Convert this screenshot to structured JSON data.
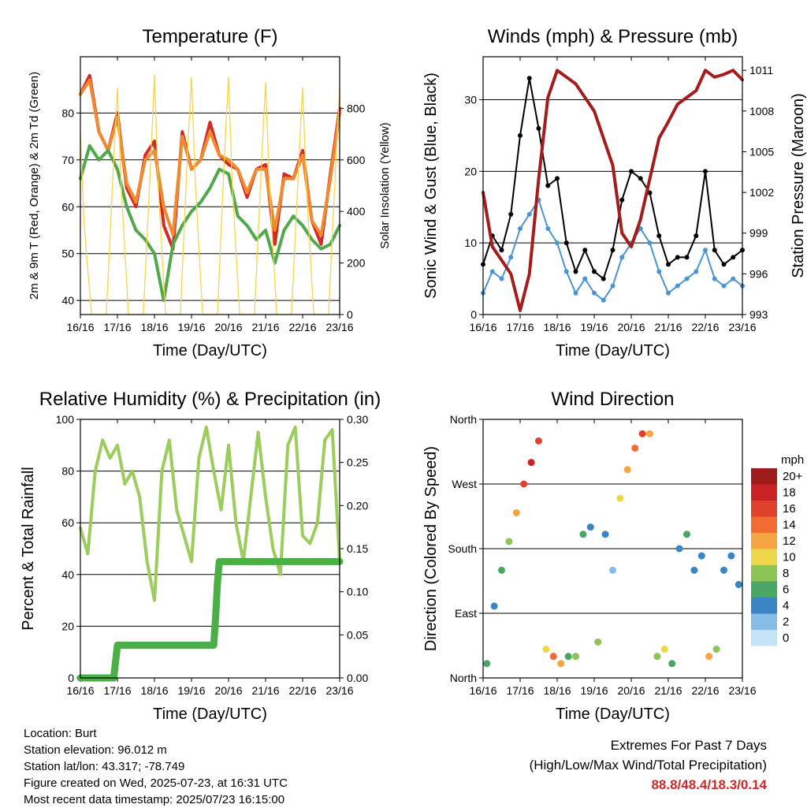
{
  "chart_data": [
    {
      "id": "temperature",
      "type": "line",
      "title": "Temperature (F)",
      "xlabel": "Time (Day/UTC)",
      "ylabel": "2m & 9m T (Red, Orange) & 2m Td (Green)",
      "ylabel_right": "Solar Insolation (Yellow)",
      "x_ticks": [
        "16/16",
        "17/16",
        "18/16",
        "19/16",
        "20/16",
        "21/16",
        "22/16",
        "23/16"
      ],
      "y_ticks": [
        "40",
        "50",
        "60",
        "70",
        "80"
      ],
      "y2_ticks": [
        "0",
        "200",
        "400",
        "600",
        "800"
      ],
      "ylim": [
        37,
        92
      ],
      "y2lim": [
        0,
        1000
      ],
      "series": [
        {
          "name": "2m T",
          "color": "#d42a26",
          "x": [
            0,
            0.25,
            0.5,
            0.75,
            1.0,
            1.25,
            1.5,
            1.75,
            2.0,
            2.25,
            2.5,
            2.75,
            3.0,
            3.25,
            3.5,
            3.75,
            4.0,
            4.25,
            4.5,
            4.75,
            5.0,
            5.25,
            5.5,
            5.75,
            6.0,
            6.25,
            6.5,
            6.75,
            7.0
          ],
          "values": [
            84,
            88,
            76,
            72,
            80,
            64,
            60,
            71,
            74,
            56,
            51,
            76,
            68,
            70,
            78,
            71,
            69,
            68,
            62,
            68,
            69,
            52,
            67,
            66,
            72,
            57,
            52,
            67,
            81
          ]
        },
        {
          "name": "9m T",
          "color": "#f08a2e",
          "x": [
            0,
            0.25,
            0.5,
            0.75,
            1.0,
            1.25,
            1.5,
            1.75,
            2.0,
            2.25,
            2.5,
            2.75,
            3.0,
            3.25,
            3.5,
            3.75,
            4.0,
            4.25,
            4.5,
            4.75,
            5.0,
            5.25,
            5.5,
            5.75,
            6.0,
            6.25,
            6.5,
            6.75,
            7.0
          ],
          "values": [
            84,
            87,
            76,
            72,
            79,
            65,
            61,
            70,
            72,
            60,
            54,
            75,
            68,
            70,
            76,
            71,
            70,
            68,
            63,
            68,
            68,
            55,
            66,
            66,
            71,
            57,
            54,
            66,
            80
          ]
        },
        {
          "name": "2m Td",
          "color": "#4fa84a",
          "x": [
            0,
            0.25,
            0.5,
            0.75,
            1.0,
            1.25,
            1.5,
            1.75,
            2.0,
            2.25,
            2.5,
            2.75,
            3.0,
            3.25,
            3.5,
            3.75,
            4.0,
            4.25,
            4.5,
            4.75,
            5.0,
            5.25,
            5.5,
            5.75,
            6.0,
            6.25,
            6.5,
            6.75,
            7.0
          ],
          "values": [
            66,
            73,
            70,
            72,
            68,
            60,
            55,
            53,
            50,
            40,
            52,
            56,
            59,
            61,
            64,
            68,
            67,
            58,
            56,
            53,
            55,
            48,
            55,
            58,
            56,
            53,
            51,
            52,
            56
          ]
        },
        {
          "name": "Solar Insolation",
          "color": "#f5d54a",
          "axis": "right",
          "x": [
            0,
            0.1,
            0.3,
            0.5,
            0.7,
            0.9,
            1.0,
            1.1,
            1.3,
            1.5,
            1.7,
            1.9,
            2.0,
            2.1,
            2.3,
            2.5,
            2.7,
            2.9,
            3.0,
            3.1,
            3.3,
            3.5,
            3.7,
            3.9,
            4.0,
            4.1,
            4.3,
            4.5,
            4.7,
            4.9,
            5.0,
            5.1,
            5.3,
            5.5,
            5.7,
            5.9,
            6.0,
            6.1,
            6.3,
            6.5,
            6.7,
            6.9,
            7.0
          ],
          "values": [
            700,
            350,
            0,
            0,
            0,
            600,
            880,
            500,
            0,
            0,
            0,
            600,
            930,
            500,
            0,
            0,
            0,
            650,
            920,
            520,
            0,
            0,
            0,
            650,
            920,
            500,
            0,
            0,
            0,
            620,
            900,
            520,
            0,
            0,
            0,
            600,
            880,
            500,
            0,
            0,
            0,
            600,
            880
          ]
        }
      ]
    },
    {
      "id": "winds",
      "type": "scatter",
      "title": "Winds (mph) & Pressure (mb)",
      "xlabel": "Time (Day/UTC)",
      "ylabel": "Sonic Wind & Gust (Blue, Black)",
      "ylabel_right": "Station Pressure (Maroon)",
      "x_ticks": [
        "16/16",
        "17/16",
        "18/16",
        "19/16",
        "20/16",
        "21/16",
        "22/16",
        "23/16"
      ],
      "y_ticks": [
        "0",
        "10",
        "20",
        "30"
      ],
      "y2_ticks": [
        "993",
        "996",
        "999",
        "1002",
        "1005",
        "1008",
        "1011"
      ],
      "ylim": [
        0,
        36
      ],
      "y2lim": [
        993,
        1012
      ],
      "series": [
        {
          "name": "Sonic Wind",
          "color": "#4b93d1",
          "x": [
            0,
            0.25,
            0.5,
            0.75,
            1.0,
            1.25,
            1.5,
            1.75,
            2.0,
            2.25,
            2.5,
            2.75,
            3.0,
            3.25,
            3.5,
            3.75,
            4.0,
            4.25,
            4.5,
            4.75,
            5.0,
            5.25,
            5.5,
            5.75,
            6.0,
            6.25,
            6.5,
            6.75,
            7.0
          ],
          "values": [
            3,
            6,
            5,
            8,
            12,
            14,
            16,
            12,
            10,
            6,
            3,
            5,
            3,
            2,
            4,
            8,
            10,
            12,
            10,
            6,
            3,
            4,
            5,
            6,
            9,
            5,
            4,
            5,
            4
          ]
        },
        {
          "name": "Gust",
          "color": "#000000",
          "x": [
            0,
            0.25,
            0.5,
            0.75,
            1.0,
            1.25,
            1.5,
            1.75,
            2.0,
            2.25,
            2.5,
            2.75,
            3.0,
            3.25,
            3.5,
            3.75,
            4.0,
            4.25,
            4.5,
            4.75,
            5.0,
            5.25,
            5.5,
            5.75,
            6.0,
            6.25,
            6.5,
            6.75,
            7.0
          ],
          "values": [
            7,
            11,
            9,
            14,
            25,
            33,
            26,
            18,
            19,
            10,
            6,
            9,
            6,
            5,
            9,
            16,
            20,
            19,
            17,
            11,
            7,
            8,
            8,
            11,
            20,
            9,
            7,
            8,
            9
          ]
        },
        {
          "name": "Station Pressure",
          "color": "#a51c1c",
          "axis": "right",
          "x": [
            0,
            0.25,
            0.5,
            0.75,
            1.0,
            1.25,
            1.5,
            1.75,
            2.0,
            2.25,
            2.5,
            2.75,
            3.0,
            3.25,
            3.5,
            3.75,
            4.0,
            4.25,
            4.5,
            4.75,
            5.0,
            5.25,
            5.5,
            5.75,
            6.0,
            6.25,
            6.5,
            6.75,
            7.0
          ],
          "values": [
            1002,
            998,
            997,
            996,
            993.3,
            996,
            1003,
            1009,
            1011,
            1010.5,
            1010,
            1009,
            1008,
            1006,
            1004,
            999,
            998,
            1000,
            1003,
            1006,
            1007.2,
            1008.5,
            1009,
            1009.5,
            1011,
            1010.5,
            1010.7,
            1011,
            1010.3
          ]
        }
      ]
    },
    {
      "id": "humidity",
      "type": "line",
      "title": "Relative Humidity (%) & Precipitation (in)",
      "xlabel": "Time (Day/UTC)",
      "ylabel": "Percent & Total Rainfall",
      "x_ticks": [
        "16/16",
        "17/16",
        "18/16",
        "19/16",
        "20/16",
        "21/16",
        "22/16",
        "23/16"
      ],
      "y_ticks": [
        "0",
        "20",
        "40",
        "60",
        "80",
        "100"
      ],
      "y2_ticks": [
        "0.00",
        "0.05",
        "0.10",
        "0.15",
        "0.20",
        "0.25",
        "0.30"
      ],
      "ylim": [
        0,
        100
      ],
      "y2lim": [
        0,
        0.3
      ],
      "series": [
        {
          "name": "Relative Humidity",
          "color": "#9ccc5c",
          "x": [
            0,
            0.2,
            0.4,
            0.6,
            0.8,
            1.0,
            1.2,
            1.4,
            1.6,
            1.8,
            2.0,
            2.2,
            2.4,
            2.6,
            2.8,
            3.0,
            3.2,
            3.4,
            3.6,
            3.8,
            4.0,
            4.2,
            4.4,
            4.6,
            4.8,
            5.0,
            5.2,
            5.4,
            5.6,
            5.8,
            6.0,
            6.2,
            6.4,
            6.6,
            6.8,
            7.0
          ],
          "values": [
            58,
            48,
            80,
            92,
            85,
            90,
            75,
            80,
            70,
            45,
            30,
            80,
            92,
            65,
            55,
            45,
            85,
            97,
            80,
            65,
            90,
            60,
            45,
            70,
            95,
            70,
            50,
            40,
            90,
            97,
            55,
            52,
            60,
            92,
            96,
            45
          ]
        },
        {
          "name": "Total Rainfall",
          "color": "#4aaf45",
          "axis": "right",
          "x": [
            0,
            0.5,
            0.9,
            1.0,
            1.3,
            2.0,
            3.0,
            3.6,
            3.65,
            3.7,
            3.75,
            4.0,
            5.0,
            6.0,
            7.0
          ],
          "values": [
            0.0,
            0.0,
            0.0,
            0.038,
            0.038,
            0.038,
            0.038,
            0.038,
            0.07,
            0.11,
            0.135,
            0.135,
            0.135,
            0.135,
            0.135
          ]
        }
      ]
    },
    {
      "id": "wind_direction",
      "type": "scatter",
      "title": "Wind Direction",
      "xlabel": "Time (Day/UTC)",
      "ylabel": "Direction (Colored By Speed)",
      "x_ticks": [
        "16/16",
        "17/16",
        "18/16",
        "19/16",
        "20/16",
        "21/16",
        "22/16",
        "23/16"
      ],
      "y_ticks": [
        "North",
        "East",
        "South",
        "West",
        "North"
      ],
      "ylim": [
        0,
        360
      ],
      "x": [
        0.1,
        0.3,
        0.5,
        0.7,
        0.9,
        1.1,
        1.3,
        1.5,
        1.7,
        1.9,
        2.1,
        2.3,
        2.5,
        2.7,
        2.9,
        3.1,
        3.3,
        3.5,
        3.7,
        3.9,
        4.1,
        4.3,
        4.5,
        4.7,
        4.9,
        5.1,
        5.3,
        5.5,
        5.7,
        5.9,
        6.1,
        6.3,
        6.5,
        6.7,
        6.9
      ],
      "direction": [
        20,
        100,
        150,
        190,
        230,
        270,
        300,
        330,
        40,
        30,
        20,
        30,
        30,
        200,
        210,
        50,
        200,
        150,
        250,
        290,
        320,
        340,
        340,
        30,
        40,
        20,
        180,
        200,
        150,
        170,
        30,
        40,
        150,
        170,
        130
      ],
      "speed": [
        5,
        4,
        6,
        8,
        12,
        16,
        18,
        16,
        10,
        14,
        12,
        6,
        7,
        5,
        3,
        7,
        3,
        2,
        9,
        12,
        14,
        15,
        12,
        8,
        10,
        6,
        3,
        5,
        4,
        4,
        12,
        8,
        3,
        4,
        3
      ],
      "legend": {
        "title": "mph",
        "labels": [
          "20+",
          "18",
          "16",
          "14",
          "12",
          "10",
          "8",
          "6",
          "4",
          "2",
          "0"
        ],
        "colors": [
          "#9e1b1b",
          "#c92222",
          "#e0412e",
          "#f16b32",
          "#f6a542",
          "#ecd84a",
          "#8dc456",
          "#4aa664",
          "#3a86c4",
          "#86bce6",
          "#c4e3f6"
        ]
      }
    }
  ],
  "station": {
    "location": "Location: Burt",
    "elevation": "Station elevation: 96.012 m",
    "latlon": "Station lat/lon: 43.317; -78.749",
    "created": "Figure created on Wed, 2025-07-23, at 16:31 UTC",
    "recent": "Most recent data timestamp: 2025/07/23 16:15:00"
  },
  "extremes": {
    "line1": "Extremes For Past 7 Days",
    "line2": "(High/Low/Max Wind/Total Precipitation)",
    "values": "88.8/48.4/18.3/0.14"
  }
}
